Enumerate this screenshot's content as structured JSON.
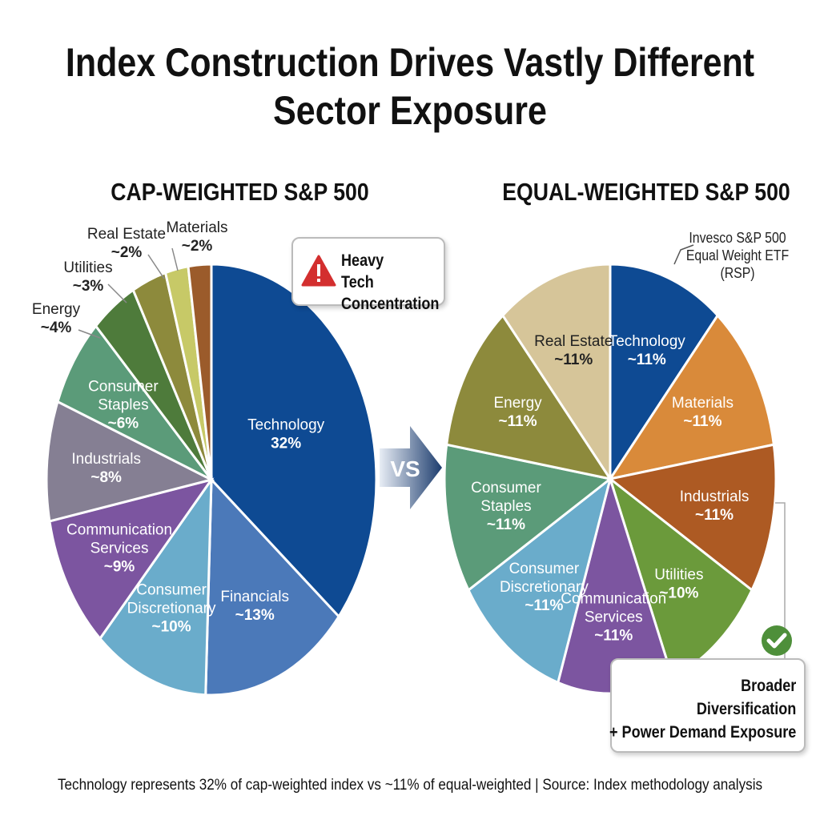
{
  "title": "Index Construction Drives Vastly Different Sector Exposure",
  "footer": "Technology represents 32% of cap-weighted index vs ~11% of equal-weighted | Source: Index methodology analysis",
  "vs_label": "VS",
  "callouts": {
    "tech": "Heavy Tech Concentration",
    "tech_icon": "warning-icon",
    "diversification": [
      "Broader",
      "Diversification",
      "+ Power Demand Exposure"
    ],
    "diversification_icon": "check-icon",
    "rsp_note": "Invesco S&P 500 Equal Weight ETF (RSP)"
  },
  "chart_data": [
    {
      "type": "pie",
      "title": "CAP-WEIGHTED S&P 500",
      "slices": [
        {
          "label": "Technology",
          "value_label": "32%",
          "value": 32,
          "color": "#0e4a93"
        },
        {
          "label": "Financials",
          "value_label": "~13%",
          "value": 13,
          "color": "#4b79b9"
        },
        {
          "label": "Consumer Discretionary",
          "value_label": "~10%",
          "value": 10,
          "color": "#6aaccb"
        },
        {
          "label": "Communication Services",
          "value_label": "~9%",
          "value": 9,
          "color": "#7c55a0"
        },
        {
          "label": "Industrials",
          "value_label": "~8%",
          "value": 8,
          "color": "#857f93"
        },
        {
          "label": "Consumer Staples",
          "value_label": "~6%",
          "value": 6,
          "color": "#5b9b79"
        },
        {
          "label": "Energy",
          "value_label": "~4%",
          "value": 4,
          "color": "#4e7b3b"
        },
        {
          "label": "Utilities",
          "value_label": "~3%",
          "value": 3,
          "color": "#8d8a3c"
        },
        {
          "label": "Real Estate",
          "value_label": "~2%",
          "value": 2,
          "color": "#c7c967"
        },
        {
          "label": "Materials",
          "value_label": "~2%",
          "value": 2,
          "color": "#9b5b2b"
        }
      ]
    },
    {
      "type": "pie",
      "title": "EQUAL-WEIGHTED S&P 500",
      "slices": [
        {
          "label": "Technology",
          "value_label": "~11%",
          "value": 11,
          "color": "#0e4a93"
        },
        {
          "label": "Materials",
          "value_label": "~11%",
          "value": 11,
          "color": "#d98a3a"
        },
        {
          "label": "Industrials",
          "value_label": "~11%",
          "value": 11,
          "color": "#ad5a23"
        },
        {
          "label": "Utilities",
          "value_label": "~10%",
          "value": 10,
          "color": "#6b9a3b"
        },
        {
          "label": "Communication Services",
          "value_label": "~11%",
          "value": 11,
          "color": "#7c55a0"
        },
        {
          "label": "Consumer Discretionary",
          "value_label": "~11%",
          "value": 11,
          "color": "#6aaccb"
        },
        {
          "label": "Consumer Staples",
          "value_label": "~11%",
          "value": 11,
          "color": "#5b9b79"
        },
        {
          "label": "Energy",
          "value_label": "~11%",
          "value": 11,
          "color": "#8d8a3c"
        },
        {
          "label": "Real Estate",
          "value_label": "~11%",
          "value": 11,
          "color": "#d6c599"
        }
      ]
    }
  ]
}
